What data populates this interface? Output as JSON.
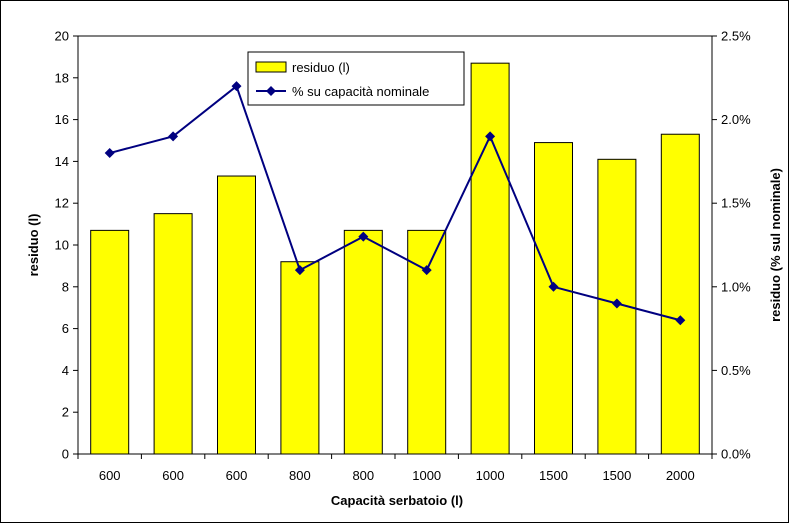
{
  "chart_data": {
    "type": "bar",
    "categories": [
      "600",
      "600",
      "600",
      "800",
      "800",
      "1000",
      "1000",
      "1500",
      "1500",
      "2000"
    ],
    "series": [
      {
        "name": "residuo (l)",
        "type": "bar",
        "axis": "left",
        "values": [
          10.7,
          11.5,
          13.3,
          9.2,
          10.7,
          10.7,
          18.7,
          14.9,
          14.1,
          15.3
        ]
      },
      {
        "name": "% su capacità nominale",
        "type": "line",
        "axis": "right",
        "values": [
          1.8,
          1.9,
          2.2,
          1.1,
          1.3,
          1.1,
          1.9,
          1.0,
          0.9,
          0.8
        ]
      }
    ],
    "xlabel": "Capacità serbatoio (l)",
    "ylabel": "residuo (l)",
    "y2label": "residuo (% sul nominale)",
    "ylim": [
      0,
      20
    ],
    "yticks": [
      0,
      2,
      4,
      6,
      8,
      10,
      12,
      14,
      16,
      18,
      20
    ],
    "y2lim": [
      0,
      2.5
    ],
    "y2ticks": [
      "0.0%",
      "0.5%",
      "1.0%",
      "1.5%",
      "2.0%",
      "2.5%"
    ],
    "legend_position": "top-center",
    "grid": false,
    "colors": {
      "bar_fill": "#ffff00",
      "bar_stroke": "#000000",
      "line": "#000080",
      "marker": "#000080"
    }
  }
}
